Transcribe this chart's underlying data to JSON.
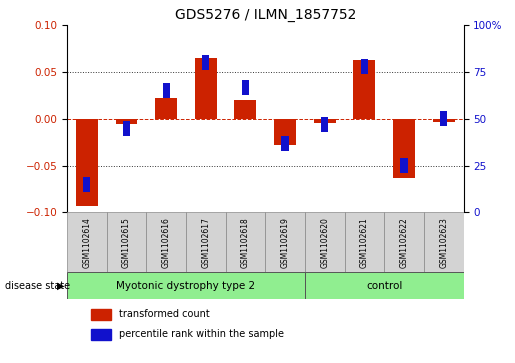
{
  "title": "GDS5276 / ILMN_1857752",
  "samples": [
    "GSM1102614",
    "GSM1102615",
    "GSM1102616",
    "GSM1102617",
    "GSM1102618",
    "GSM1102619",
    "GSM1102620",
    "GSM1102621",
    "GSM1102622",
    "GSM1102623"
  ],
  "red_values": [
    -0.093,
    -0.005,
    0.022,
    0.065,
    0.02,
    -0.028,
    -0.004,
    0.063,
    -0.063,
    -0.003
  ],
  "blue_values_pct": [
    15,
    45,
    65,
    80,
    67,
    37,
    47,
    78,
    25,
    50
  ],
  "ylim_left": [
    -0.1,
    0.1
  ],
  "ylim_right": [
    0,
    100
  ],
  "left_yticks": [
    -0.1,
    -0.05,
    0.0,
    0.05,
    0.1
  ],
  "right_yticks": [
    0,
    25,
    50,
    75,
    100
  ],
  "right_yticklabels": [
    "0",
    "25",
    "50",
    "75",
    "100%"
  ],
  "group1_label": "Myotonic dystrophy type 2",
  "group2_label": "control",
  "group1_count": 6,
  "group2_count": 4,
  "disease_state_label": "disease state",
  "legend_red": "transformed count",
  "legend_blue": "percentile rank within the sample",
  "red_color": "#cc2200",
  "blue_color": "#1111cc",
  "group1_color": "#90ee90",
  "group2_color": "#90ee90",
  "sample_box_color": "#d3d3d3",
  "hline_color": "#cc2200",
  "dotted_color": "#333333",
  "bar_width": 0.55,
  "blue_bar_width": 0.18,
  "blue_bar_height": 0.008
}
